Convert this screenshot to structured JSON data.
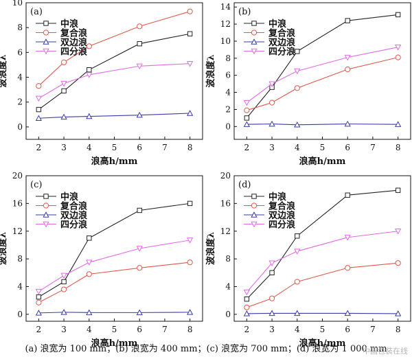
{
  "caption": "(a) 浪宽为 100 mm；(b) 浪宽为 400 mm；(c) 浪宽为 700 mm；(d) 浪宽为 1 000 mm",
  "watermark": "中国包装在线",
  "colors": {
    "中浪": "#222222",
    "复合浪": "#e0574a",
    "双边浪": "#3a3aa8",
    "四分浪": "#e26ae6"
  },
  "markers": {
    "中浪": "square",
    "复合浪": "circle",
    "双边浪": "triangle-up",
    "四分浪": "triangle-down"
  },
  "chart_data": [
    {
      "type": "line",
      "panel_label": "(a)",
      "xlabel": "浪高h/mm",
      "ylabel": "波浪度λ",
      "x": [
        2,
        3,
        4,
        6,
        8
      ],
      "xlim": [
        1.5,
        8.5
      ],
      "xticks": [
        2,
        3,
        4,
        5,
        6,
        7,
        8
      ],
      "ylim": [
        -1,
        10
      ],
      "yticks": [
        0,
        2,
        4,
        6,
        8,
        10
      ],
      "legend": "top-left",
      "series": [
        {
          "name": "中浪",
          "values": [
            1.4,
            2.9,
            4.6,
            6.7,
            7.5
          ]
        },
        {
          "name": "复合浪",
          "values": [
            3.3,
            5.2,
            6.5,
            8.1,
            9.3
          ]
        },
        {
          "name": "双边浪",
          "values": [
            0.7,
            0.8,
            0.85,
            0.95,
            1.1
          ]
        },
        {
          "name": "四分浪",
          "values": [
            2.3,
            3.5,
            4.2,
            4.9,
            5.1
          ]
        }
      ]
    },
    {
      "type": "line",
      "panel_label": "(b)",
      "xlabel": "浪高h/mm",
      "ylabel": "波浪度λ",
      "x": [
        2,
        3,
        4,
        6,
        8
      ],
      "xlim": [
        1.5,
        8.5
      ],
      "xticks": [
        2,
        3,
        4,
        5,
        6,
        7,
        8
      ],
      "ylim": [
        -1.5,
        14.5
      ],
      "yticks": [
        0,
        2,
        4,
        6,
        8,
        10,
        12,
        14
      ],
      "legend": "top-left",
      "series": [
        {
          "name": "中浪",
          "values": [
            1.0,
            4.6,
            8.8,
            12.4,
            13.1
          ]
        },
        {
          "name": "复合浪",
          "values": [
            1.9,
            2.8,
            4.5,
            6.7,
            8.1
          ]
        },
        {
          "name": "双边浪",
          "values": [
            0.25,
            0.3,
            0.2,
            0.3,
            0.25
          ]
        },
        {
          "name": "四分浪",
          "values": [
            2.8,
            5.0,
            6.5,
            8.1,
            9.3
          ]
        }
      ]
    },
    {
      "type": "line",
      "panel_label": "(c)",
      "xlabel": "浪高h/mm",
      "ylabel": "波浪度λ",
      "x": [
        2,
        3,
        4,
        6,
        8
      ],
      "xlim": [
        1.5,
        8.5
      ],
      "xticks": [
        2,
        3,
        4,
        5,
        6,
        7,
        8
      ],
      "ylim": [
        -1,
        20
      ],
      "yticks": [
        0,
        4,
        8,
        12,
        16,
        20
      ],
      "legend": "top-left",
      "series": [
        {
          "name": "中浪",
          "values": [
            2.5,
            4.7,
            11.0,
            15.0,
            16.0
          ]
        },
        {
          "name": "复合浪",
          "values": [
            1.7,
            3.6,
            5.8,
            6.7,
            7.5
          ]
        },
        {
          "name": "双边浪",
          "values": [
            0.2,
            0.3,
            0.25,
            0.25,
            0.3
          ]
        },
        {
          "name": "四分浪",
          "values": [
            3.3,
            5.6,
            7.5,
            9.5,
            10.7
          ]
        }
      ]
    },
    {
      "type": "line",
      "panel_label": "(d)",
      "xlabel": "浪高h/mm",
      "ylabel": "波浪度λ",
      "x": [
        2,
        3,
        4,
        6,
        8
      ],
      "xlim": [
        1.5,
        8.5
      ],
      "xticks": [
        2,
        3,
        4,
        5,
        6,
        7,
        8
      ],
      "ylim": [
        -1,
        20
      ],
      "yticks": [
        0,
        4,
        8,
        12,
        16,
        20
      ],
      "legend": "top-left",
      "series": [
        {
          "name": "中浪",
          "values": [
            2.2,
            6.0,
            11.3,
            17.2,
            17.9
          ]
        },
        {
          "name": "复合浪",
          "values": [
            1.0,
            2.3,
            4.7,
            6.7,
            7.4
          ]
        },
        {
          "name": "双边浪",
          "values": [
            0.1,
            0.15,
            0.15,
            0.15,
            0.1
          ]
        },
        {
          "name": "四分浪",
          "values": [
            3.2,
            7.4,
            9.1,
            11.1,
            12.0
          ]
        }
      ]
    }
  ]
}
